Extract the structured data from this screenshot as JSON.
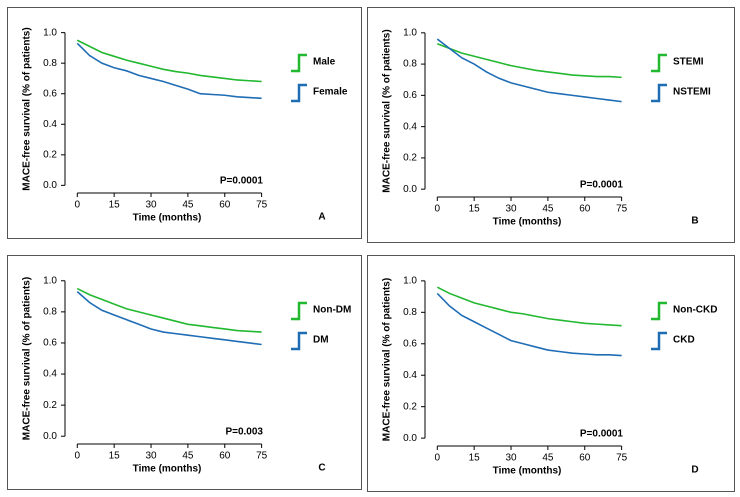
{
  "chart_data": [
    {
      "type": "line",
      "label": "A",
      "annotation": "P=0.0001",
      "xlabel": "Time (months)",
      "ylabel": "MACE-free survival (% of patients)",
      "x": [
        0,
        5,
        10,
        15,
        20,
        25,
        30,
        35,
        40,
        45,
        50,
        55,
        60,
        65,
        70,
        75
      ],
      "series": [
        {
          "name": "Male",
          "color": "#22b830",
          "values": [
            0.95,
            0.91,
            0.87,
            0.845,
            0.82,
            0.8,
            0.78,
            0.76,
            0.745,
            0.735,
            0.72,
            0.71,
            0.7,
            0.69,
            0.685,
            0.68
          ]
        },
        {
          "name": "Female",
          "color": "#1f6db5",
          "values": [
            0.93,
            0.85,
            0.8,
            0.77,
            0.75,
            0.72,
            0.7,
            0.68,
            0.655,
            0.63,
            0.6,
            0.595,
            0.59,
            0.58,
            0.575,
            0.57
          ]
        }
      ],
      "xlim": [
        -5,
        78
      ],
      "xticks": [
        0,
        15,
        30,
        45,
        60,
        75
      ],
      "ylim": [
        -0.05,
        1.05
      ],
      "yticks": [
        {
          "value": 0,
          "label": "0.0"
        },
        0.2,
        0.4,
        0.6,
        0.8,
        {
          "value": 1,
          "label": "1.0"
        }
      ]
    },
    {
      "type": "line",
      "label": "B",
      "annotation": "P=0.0001",
      "xlabel": "Time (months)",
      "ylabel": "MACE-free survival (% of patients)",
      "x": [
        0,
        5,
        10,
        15,
        20,
        25,
        30,
        35,
        40,
        45,
        50,
        55,
        60,
        65,
        70,
        75
      ],
      "series": [
        {
          "name": "STEMI",
          "color": "#22b830",
          "values": [
            0.93,
            0.9,
            0.87,
            0.85,
            0.83,
            0.81,
            0.79,
            0.775,
            0.76,
            0.75,
            0.74,
            0.73,
            0.725,
            0.72,
            0.72,
            0.715
          ]
        },
        {
          "name": "NSTEMI",
          "color": "#1f6db5",
          "values": [
            0.96,
            0.9,
            0.84,
            0.8,
            0.75,
            0.71,
            0.68,
            0.66,
            0.64,
            0.62,
            0.61,
            0.6,
            0.59,
            0.58,
            0.57,
            0.56
          ]
        }
      ],
      "xlim": [
        -5,
        78
      ],
      "xticks": [
        0,
        15,
        30,
        45,
        60,
        75
      ],
      "ylim": [
        -0.05,
        1.05
      ],
      "yticks": [
        {
          "value": 0,
          "label": "0.0"
        },
        0.2,
        0.4,
        0.6,
        0.8,
        {
          "value": 1,
          "label": "1.0"
        }
      ]
    },
    {
      "type": "line",
      "label": "C",
      "annotation": "P=0.003",
      "xlabel": "Time (months)",
      "ylabel": "MACE-free survival (% of patients)",
      "x": [
        0,
        5,
        10,
        15,
        20,
        25,
        30,
        35,
        40,
        45,
        50,
        55,
        60,
        65,
        70,
        75
      ],
      "series": [
        {
          "name": "Non-DM",
          "color": "#22b830",
          "values": [
            0.95,
            0.91,
            0.88,
            0.85,
            0.82,
            0.8,
            0.78,
            0.76,
            0.74,
            0.72,
            0.71,
            0.7,
            0.69,
            0.68,
            0.675,
            0.67
          ]
        },
        {
          "name": "DM",
          "color": "#1f6db5",
          "values": [
            0.93,
            0.86,
            0.81,
            0.78,
            0.75,
            0.72,
            0.69,
            0.67,
            0.66,
            0.65,
            0.64,
            0.63,
            0.62,
            0.61,
            0.6,
            0.59
          ]
        }
      ],
      "xlim": [
        -5,
        78
      ],
      "xticks": [
        0,
        15,
        30,
        45,
        60,
        75
      ],
      "ylim": [
        -0.05,
        1.05
      ],
      "yticks": [
        {
          "value": 0,
          "label": "0.0"
        },
        0.2,
        0.4,
        0.6,
        0.8,
        {
          "value": 1,
          "label": "1.0"
        }
      ]
    },
    {
      "type": "line",
      "label": "D",
      "annotation": "P=0.0001",
      "xlabel": "Time (months)",
      "ylabel": "MACE-free survival (% of patients)",
      "x": [
        0,
        5,
        10,
        15,
        20,
        25,
        30,
        35,
        40,
        45,
        50,
        55,
        60,
        65,
        70,
        75
      ],
      "series": [
        {
          "name": "Non-CKD",
          "color": "#22b830",
          "values": [
            0.96,
            0.92,
            0.89,
            0.86,
            0.84,
            0.82,
            0.8,
            0.79,
            0.775,
            0.76,
            0.75,
            0.74,
            0.73,
            0.725,
            0.72,
            0.715
          ]
        },
        {
          "name": "CKD",
          "color": "#1f6db5",
          "values": [
            0.92,
            0.84,
            0.78,
            0.74,
            0.7,
            0.66,
            0.62,
            0.6,
            0.58,
            0.56,
            0.55,
            0.54,
            0.535,
            0.53,
            0.53,
            0.525
          ]
        }
      ],
      "xlim": [
        -5,
        78
      ],
      "xticks": [
        0,
        15,
        30,
        45,
        60,
        75
      ],
      "ylim": [
        -0.05,
        1.05
      ],
      "yticks": [
        {
          "value": 0,
          "label": "0.0"
        },
        0.2,
        0.4,
        0.6,
        0.8,
        {
          "value": 1,
          "label": "1.0"
        }
      ]
    }
  ]
}
